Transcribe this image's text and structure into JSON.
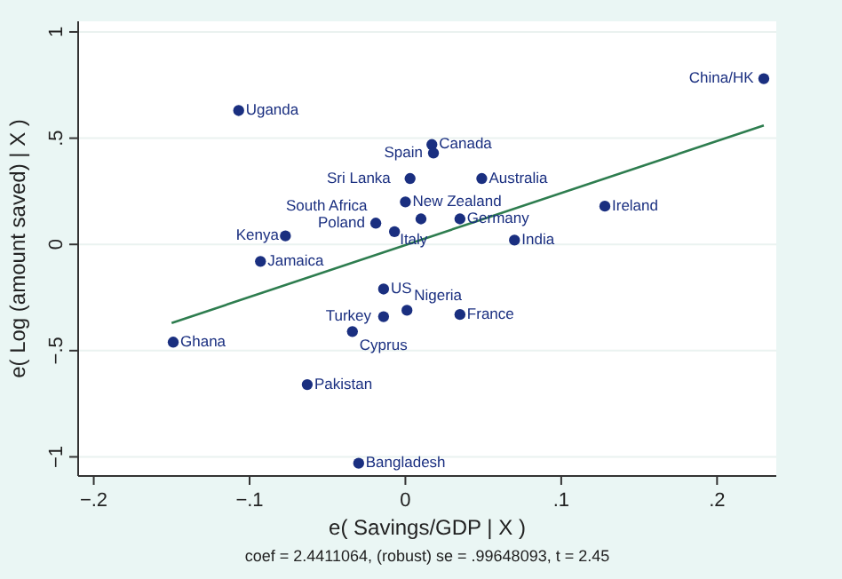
{
  "chart_data": {
    "type": "scatter",
    "xlabel": "e( Savings/GDP | X )",
    "ylabel": "e( Log (amount saved) | X )",
    "xlim": [
      -0.21,
      0.238
    ],
    "ylim": [
      -1.09,
      1.05
    ],
    "xticks": [
      {
        "value": -0.2,
        "label": "−.2"
      },
      {
        "value": -0.1,
        "label": "−.1"
      },
      0,
      {
        "value": 0.1,
        "label": ".1"
      },
      {
        "value": 0.2,
        "label": ".2"
      }
    ],
    "yticks": [
      {
        "value": -1,
        "label": "−1"
      },
      {
        "value": -0.5,
        "label": "−.5"
      },
      0,
      {
        "value": 0.5,
        "label": ".5"
      },
      1
    ],
    "grid": "y",
    "marker": "circle",
    "series": [
      {
        "type": "scatter",
        "color": "#1a2f80",
        "x": [
          -0.107,
          0.23,
          0.017,
          0.018,
          0.003,
          0.049,
          0.0,
          -0.019,
          0.01,
          0.035,
          -0.007,
          -0.077,
          -0.093,
          0.128,
          0.07,
          -0.014,
          0.001,
          -0.014,
          0.035,
          -0.034,
          -0.149,
          -0.063,
          -0.03
        ],
        "values": [
          0.63,
          0.78,
          0.47,
          0.43,
          0.31,
          0.31,
          0.2,
          0.1,
          0.12,
          0.12,
          0.06,
          0.04,
          -0.08,
          0.18,
          0.02,
          -0.21,
          -0.31,
          -0.34,
          -0.33,
          -0.41,
          -0.46,
          -0.66,
          -1.03
        ]
      },
      {
        "type": "line",
        "color": "#2e7d4f",
        "marker": "none",
        "x": [
          -0.15,
          0.23
        ],
        "values": [
          -0.37,
          0.56
        ]
      }
    ],
    "annotations": [
      {
        "text": "Uganda",
        "x": -0.107,
        "y": 0.63
      },
      {
        "text": "China/HK",
        "x": 0.23,
        "y": 0.78
      },
      {
        "text": "Canada",
        "x": 0.017,
        "y": 0.47
      },
      {
        "text": "Spain",
        "x": 0.018,
        "y": 0.43
      },
      {
        "text": "Sri Lanka",
        "x": 0.003,
        "y": 0.31
      },
      {
        "text": "Australia",
        "x": 0.049,
        "y": 0.31
      },
      {
        "text": "New Zealand",
        "x": 0.0,
        "y": 0.2
      },
      {
        "text": "Poland",
        "x": -0.019,
        "y": 0.1
      },
      {
        "text": "Italy",
        "x": 0.01,
        "y": 0.12
      },
      {
        "text": "Germany",
        "x": 0.035,
        "y": 0.12
      },
      {
        "text": "South Africa",
        "x": -0.007,
        "y": 0.06
      },
      {
        "text": "Kenya",
        "x": -0.077,
        "y": 0.04
      },
      {
        "text": "Jamaica",
        "x": -0.093,
        "y": -0.08
      },
      {
        "text": "Ireland",
        "x": 0.128,
        "y": 0.18
      },
      {
        "text": "India",
        "x": 0.07,
        "y": 0.02
      },
      {
        "text": "US",
        "x": -0.014,
        "y": -0.21
      },
      {
        "text": "Nigeria",
        "x": 0.001,
        "y": -0.31
      },
      {
        "text": "Turkey",
        "x": -0.014,
        "y": -0.34
      },
      {
        "text": "France",
        "x": 0.035,
        "y": -0.33
      },
      {
        "text": "Cyprus",
        "x": -0.034,
        "y": -0.41
      },
      {
        "text": "Ghana",
        "x": -0.149,
        "y": -0.46
      },
      {
        "text": "Pakistan",
        "x": -0.063,
        "y": -0.66
      },
      {
        "text": "Bangladesh",
        "x": -0.03,
        "y": -1.03
      },
      "coef = 2.4411064, (robust) se = .99648093, t = 2.45"
    ]
  }
}
